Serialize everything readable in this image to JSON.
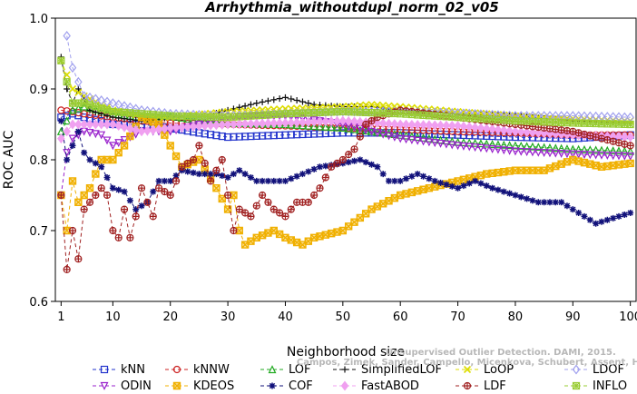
{
  "chart_data": {
    "type": "line",
    "title": "Arrhythmia_withoutdupl_norm_02_v05",
    "xlabel": "Neighborhood size",
    "ylabel": "ROC AUC",
    "xlim": [
      0,
      101
    ],
    "ylim": [
      0.6,
      1.0
    ],
    "x_ticks": [
      1,
      10,
      20,
      30,
      40,
      50,
      60,
      70,
      80,
      90,
      100
    ],
    "y_ticks": [
      0.6,
      0.7,
      0.8,
      0.9,
      1.0
    ],
    "x_tick_labels": [
      "1",
      "10",
      "20",
      "30",
      "40",
      "50",
      "60",
      "70",
      "80",
      "90",
      "100"
    ],
    "y_tick_labels": [
      "0.6",
      "0.7",
      "0.8",
      "0.9",
      "1.0"
    ],
    "grid": false,
    "legend_position": "bottom",
    "series": [
      {
        "name": "kNN",
        "color": "#2233cc",
        "marker": "square",
        "dash": "4,3",
        "keypoints": [
          [
            1,
            0.86
          ],
          [
            3,
            0.865
          ],
          [
            5,
            0.86
          ],
          [
            8,
            0.855
          ],
          [
            10,
            0.85
          ],
          [
            15,
            0.85
          ],
          [
            20,
            0.845
          ],
          [
            25,
            0.838
          ],
          [
            30,
            0.832
          ],
          [
            40,
            0.835
          ],
          [
            50,
            0.838
          ],
          [
            60,
            0.838
          ],
          [
            70,
            0.835
          ],
          [
            80,
            0.832
          ],
          [
            90,
            0.83
          ],
          [
            100,
            0.835
          ]
        ]
      },
      {
        "name": "kNNW",
        "color": "#cc2222",
        "marker": "circle",
        "dash": "4,3",
        "keypoints": [
          [
            1,
            0.87
          ],
          [
            3,
            0.868
          ],
          [
            5,
            0.865
          ],
          [
            10,
            0.86
          ],
          [
            15,
            0.855
          ],
          [
            20,
            0.852
          ],
          [
            30,
            0.85
          ],
          [
            40,
            0.848
          ],
          [
            50,
            0.845
          ],
          [
            60,
            0.843
          ],
          [
            70,
            0.84
          ],
          [
            80,
            0.838
          ],
          [
            90,
            0.835
          ],
          [
            100,
            0.835
          ]
        ]
      },
      {
        "name": "LOF",
        "color": "#22aa22",
        "marker": "triangle-up",
        "dash": "4,3",
        "keypoints": [
          [
            1,
            0.84
          ],
          [
            3,
            0.87
          ],
          [
            5,
            0.875
          ],
          [
            10,
            0.865
          ],
          [
            15,
            0.86
          ],
          [
            20,
            0.862
          ],
          [
            25,
            0.855
          ],
          [
            30,
            0.852
          ],
          [
            40,
            0.85
          ],
          [
            50,
            0.845
          ],
          [
            60,
            0.835
          ],
          [
            70,
            0.825
          ],
          [
            80,
            0.82
          ],
          [
            90,
            0.815
          ],
          [
            100,
            0.812
          ]
        ]
      },
      {
        "name": "SimplifiedLOF",
        "color": "#111111",
        "marker": "plus",
        "dash": "4,3",
        "keypoints": [
          [
            1,
            0.945
          ],
          [
            2,
            0.9
          ],
          [
            3,
            0.88
          ],
          [
            4,
            0.9
          ],
          [
            6,
            0.87
          ],
          [
            10,
            0.86
          ],
          [
            15,
            0.855
          ],
          [
            20,
            0.86
          ],
          [
            25,
            0.86
          ],
          [
            30,
            0.87
          ],
          [
            35,
            0.88
          ],
          [
            40,
            0.888
          ],
          [
            45,
            0.878
          ],
          [
            50,
            0.875
          ],
          [
            55,
            0.875
          ],
          [
            60,
            0.87
          ],
          [
            70,
            0.865
          ],
          [
            80,
            0.862
          ],
          [
            90,
            0.855
          ],
          [
            100,
            0.852
          ]
        ]
      },
      {
        "name": "LoOP",
        "color": "#dddd00",
        "marker": "x",
        "dash": "4,3",
        "keypoints": [
          [
            1,
            0.94
          ],
          [
            3,
            0.9
          ],
          [
            5,
            0.89
          ],
          [
            10,
            0.87
          ],
          [
            15,
            0.862
          ],
          [
            20,
            0.86
          ],
          [
            30,
            0.868
          ],
          [
            40,
            0.872
          ],
          [
            50,
            0.875
          ],
          [
            55,
            0.878
          ],
          [
            60,
            0.875
          ],
          [
            70,
            0.868
          ],
          [
            80,
            0.862
          ],
          [
            90,
            0.858
          ],
          [
            100,
            0.855
          ]
        ]
      },
      {
        "name": "LDOF",
        "color": "#a0a0ee",
        "marker": "diamond",
        "dash": "4,3",
        "keypoints": [
          [
            2,
            0.975
          ],
          [
            3,
            0.93
          ],
          [
            5,
            0.89
          ],
          [
            10,
            0.88
          ],
          [
            15,
            0.87
          ],
          [
            20,
            0.865
          ],
          [
            30,
            0.862
          ],
          [
            40,
            0.865
          ],
          [
            50,
            0.868
          ],
          [
            60,
            0.868
          ],
          [
            70,
            0.866
          ],
          [
            80,
            0.862
          ],
          [
            90,
            0.862
          ],
          [
            100,
            0.86
          ]
        ]
      },
      {
        "name": "ODIN",
        "color": "#9922cc",
        "marker": "triangle-down",
        "dash": "4,3",
        "keypoints": [
          [
            1,
            0.75
          ],
          [
            2,
            0.81
          ],
          [
            3,
            0.83
          ],
          [
            5,
            0.84
          ],
          [
            8,
            0.835
          ],
          [
            10,
            0.82
          ],
          [
            15,
            0.84
          ],
          [
            20,
            0.84
          ],
          [
            30,
            0.86
          ],
          [
            40,
            0.862
          ],
          [
            50,
            0.85
          ],
          [
            55,
            0.84
          ],
          [
            60,
            0.83
          ],
          [
            70,
            0.82
          ],
          [
            80,
            0.812
          ],
          [
            90,
            0.808
          ],
          [
            100,
            0.805
          ]
        ]
      },
      {
        "name": "KDEOS",
        "color": "#f0b000",
        "marker": "square-x",
        "dash": "4,3",
        "keypoints": [
          [
            1,
            0.75
          ],
          [
            2,
            0.7
          ],
          [
            3,
            0.77
          ],
          [
            4,
            0.74
          ],
          [
            5,
            0.75
          ],
          [
            6,
            0.76
          ],
          [
            8,
            0.8
          ],
          [
            10,
            0.8
          ],
          [
            12,
            0.82
          ],
          [
            15,
            0.86
          ],
          [
            18,
            0.85
          ],
          [
            20,
            0.82
          ],
          [
            22,
            0.79
          ],
          [
            25,
            0.8
          ],
          [
            28,
            0.76
          ],
          [
            30,
            0.73
          ],
          [
            31,
            0.75
          ],
          [
            32,
            0.7
          ],
          [
            33,
            0.68
          ],
          [
            35,
            0.69
          ],
          [
            38,
            0.7
          ],
          [
            40,
            0.69
          ],
          [
            43,
            0.68
          ],
          [
            45,
            0.69
          ],
          [
            50,
            0.7
          ],
          [
            55,
            0.73
          ],
          [
            60,
            0.75
          ],
          [
            65,
            0.76
          ],
          [
            70,
            0.77
          ],
          [
            75,
            0.78
          ],
          [
            80,
            0.785
          ],
          [
            85,
            0.785
          ],
          [
            90,
            0.8
          ],
          [
            95,
            0.79
          ],
          [
            100,
            0.795
          ]
        ]
      },
      {
        "name": "COF",
        "color": "#11117a",
        "marker": "asterisk",
        "dash": "4,3",
        "keypoints": [
          [
            1,
            0.855
          ],
          [
            2,
            0.8
          ],
          [
            3,
            0.82
          ],
          [
            4,
            0.84
          ],
          [
            5,
            0.81
          ],
          [
            6,
            0.8
          ],
          [
            8,
            0.79
          ],
          [
            10,
            0.76
          ],
          [
            12,
            0.755
          ],
          [
            14,
            0.73
          ],
          [
            16,
            0.74
          ],
          [
            18,
            0.77
          ],
          [
            20,
            0.77
          ],
          [
            22,
            0.785
          ],
          [
            25,
            0.78
          ],
          [
            28,
            0.78
          ],
          [
            30,
            0.775
          ],
          [
            32,
            0.785
          ],
          [
            35,
            0.77
          ],
          [
            38,
            0.77
          ],
          [
            40,
            0.77
          ],
          [
            43,
            0.78
          ],
          [
            46,
            0.79
          ],
          [
            50,
            0.795
          ],
          [
            53,
            0.8
          ],
          [
            56,
            0.79
          ],
          [
            58,
            0.77
          ],
          [
            60,
            0.77
          ],
          [
            63,
            0.78
          ],
          [
            66,
            0.77
          ],
          [
            70,
            0.76
          ],
          [
            73,
            0.77
          ],
          [
            76,
            0.76
          ],
          [
            80,
            0.75
          ],
          [
            84,
            0.74
          ],
          [
            88,
            0.74
          ],
          [
            92,
            0.72
          ],
          [
            94,
            0.71
          ],
          [
            96,
            0.715
          ],
          [
            100,
            0.725
          ]
        ]
      },
      {
        "name": "FastABOD",
        "color": "#f0a0f0",
        "marker": "diamond-filled",
        "dash": "4,3",
        "keypoints": [
          [
            1,
            0.83
          ],
          [
            3,
            0.85
          ],
          [
            5,
            0.85
          ],
          [
            10,
            0.85
          ],
          [
            15,
            0.84
          ],
          [
            20,
            0.845
          ],
          [
            30,
            0.85
          ],
          [
            40,
            0.852
          ],
          [
            50,
            0.855
          ],
          [
            60,
            0.85
          ],
          [
            70,
            0.848
          ],
          [
            80,
            0.84
          ],
          [
            90,
            0.835
          ],
          [
            100,
            0.832
          ]
        ]
      },
      {
        "name": "LDF",
        "color": "#a02020",
        "marker": "circle-plus",
        "dash": "4,3",
        "keypoints": [
          [
            1,
            0.75
          ],
          [
            2,
            0.645
          ],
          [
            3,
            0.7
          ],
          [
            4,
            0.66
          ],
          [
            5,
            0.73
          ],
          [
            6,
            0.74
          ],
          [
            7,
            0.75
          ],
          [
            8,
            0.76
          ],
          [
            9,
            0.75
          ],
          [
            10,
            0.7
          ],
          [
            11,
            0.69
          ],
          [
            12,
            0.73
          ],
          [
            13,
            0.69
          ],
          [
            14,
            0.72
          ],
          [
            15,
            0.76
          ],
          [
            17,
            0.72
          ],
          [
            18,
            0.76
          ],
          [
            20,
            0.75
          ],
          [
            22,
            0.79
          ],
          [
            24,
            0.8
          ],
          [
            25,
            0.82
          ],
          [
            27,
            0.77
          ],
          [
            29,
            0.8
          ],
          [
            31,
            0.7
          ],
          [
            32,
            0.73
          ],
          [
            34,
            0.72
          ],
          [
            36,
            0.75
          ],
          [
            38,
            0.73
          ],
          [
            40,
            0.72
          ],
          [
            42,
            0.74
          ],
          [
            44,
            0.74
          ],
          [
            46,
            0.76
          ],
          [
            48,
            0.79
          ],
          [
            50,
            0.8
          ],
          [
            52,
            0.815
          ],
          [
            54,
            0.85
          ],
          [
            56,
            0.86
          ],
          [
            58,
            0.865
          ],
          [
            60,
            0.87
          ],
          [
            65,
            0.865
          ],
          [
            70,
            0.86
          ],
          [
            75,
            0.855
          ],
          [
            80,
            0.85
          ],
          [
            85,
            0.845
          ],
          [
            90,
            0.84
          ],
          [
            95,
            0.83
          ],
          [
            100,
            0.82
          ]
        ]
      },
      {
        "name": "INFLO",
        "color": "#99cc33",
        "marker": "square-star",
        "dash": "4,3",
        "keypoints": [
          [
            1,
            0.94
          ],
          [
            3,
            0.88
          ],
          [
            5,
            0.88
          ],
          [
            10,
            0.868
          ],
          [
            15,
            0.865
          ],
          [
            20,
            0.862
          ],
          [
            30,
            0.86
          ],
          [
            40,
            0.865
          ],
          [
            50,
            0.868
          ],
          [
            60,
            0.865
          ],
          [
            70,
            0.86
          ],
          [
            80,
            0.855
          ],
          [
            90,
            0.852
          ],
          [
            100,
            0.85
          ]
        ]
      }
    ]
  },
  "watermark": {
    "line1": "Unsupervised Outlier Detection. DAMI, 2015.",
    "line2": "Campos, Zimek, Sander, Campello, Micenkova, Schubert, Assent, Houle"
  }
}
